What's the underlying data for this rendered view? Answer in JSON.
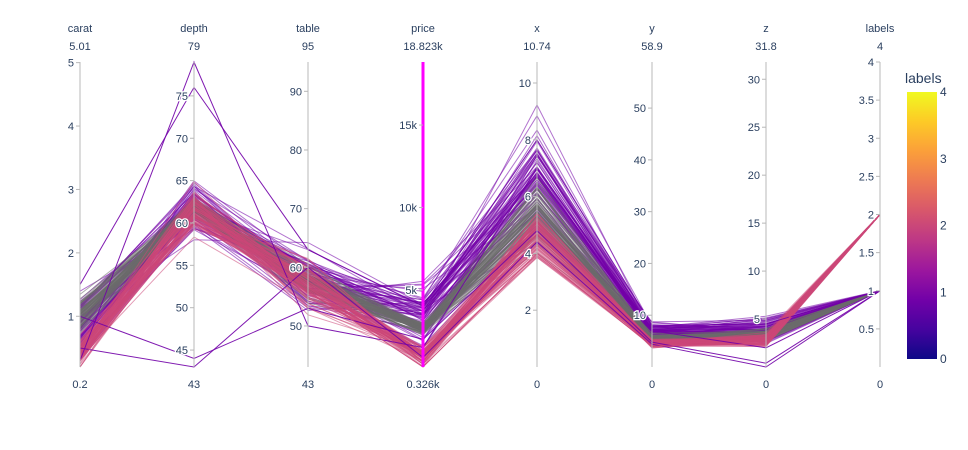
{
  "chart_data": {
    "type": "parallel-coordinates",
    "title": "",
    "color_dimension": "labels",
    "colorscale": [
      "#0d0887",
      "#46039f",
      "#7201a8",
      "#9c179e",
      "#bd3786",
      "#d8576b",
      "#ed7953",
      "#fb9f3a",
      "#fdca26",
      "#f0f921"
    ],
    "color_range": [
      0,
      4
    ],
    "dimensions": [
      {
        "name": "carat",
        "min": 0.2,
        "max": 5.01,
        "min_label": "0.2",
        "max_label": "5.01",
        "ticks": [
          {
            "v": 1,
            "label": "1"
          },
          {
            "v": 2,
            "label": "2"
          },
          {
            "v": 3,
            "label": "3"
          },
          {
            "v": 4,
            "label": "4"
          },
          {
            "v": 5,
            "label": "5"
          }
        ]
      },
      {
        "name": "depth",
        "min": 43,
        "max": 79,
        "min_label": "43",
        "max_label": "79",
        "ticks": [
          {
            "v": 45,
            "label": "45"
          },
          {
            "v": 50,
            "label": "50"
          },
          {
            "v": 55,
            "label": "55"
          },
          {
            "v": 60,
            "label": "60"
          },
          {
            "v": 65,
            "label": "65"
          },
          {
            "v": 70,
            "label": "70"
          },
          {
            "v": 75,
            "label": "75"
          }
        ]
      },
      {
        "name": "table",
        "min": 43,
        "max": 95,
        "min_label": "43",
        "max_label": "95",
        "ticks": [
          {
            "v": 50,
            "label": "50"
          },
          {
            "v": 60,
            "label": "60"
          },
          {
            "v": 70,
            "label": "70"
          },
          {
            "v": 80,
            "label": "80"
          },
          {
            "v": 90,
            "label": "90"
          }
        ]
      },
      {
        "name": "price",
        "min": 326,
        "max": 18823,
        "min_label": "0.326k",
        "max_label": "18.823k",
        "ticks": [
          {
            "v": 5000,
            "label": "5k"
          },
          {
            "v": 10000,
            "label": "10k"
          },
          {
            "v": 15000,
            "label": "15k"
          }
        ],
        "constraint": [
          326,
          18823
        ],
        "constraint_color": "#ff00ff"
      },
      {
        "name": "x",
        "min": 0,
        "max": 10.74,
        "min_label": "0",
        "max_label": "10.74",
        "ticks": [
          {
            "v": 2,
            "label": "2"
          },
          {
            "v": 4,
            "label": "4"
          },
          {
            "v": 6,
            "label": "6"
          },
          {
            "v": 8,
            "label": "8"
          },
          {
            "v": 10,
            "label": "10"
          }
        ]
      },
      {
        "name": "y",
        "min": 0,
        "max": 58.9,
        "min_label": "0",
        "max_label": "58.9",
        "ticks": [
          {
            "v": 10,
            "label": "10"
          },
          {
            "v": 20,
            "label": "20"
          },
          {
            "v": 30,
            "label": "30"
          },
          {
            "v": 40,
            "label": "40"
          },
          {
            "v": 50,
            "label": "50"
          }
        ]
      },
      {
        "name": "z",
        "min": 0,
        "max": 31.8,
        "min_label": "0",
        "max_label": "31.8",
        "ticks": [
          {
            "v": 5,
            "label": "5"
          },
          {
            "v": 10,
            "label": "10"
          },
          {
            "v": 15,
            "label": "15"
          },
          {
            "v": 20,
            "label": "20"
          },
          {
            "v": 25,
            "label": "25"
          },
          {
            "v": 30,
            "label": "30"
          }
        ]
      },
      {
        "name": "labels",
        "min": 0,
        "max": 4,
        "min_label": "0",
        "max_label": "4",
        "ticks": [
          {
            "v": 0.5,
            "label": "0.5"
          },
          {
            "v": 1,
            "label": "1"
          },
          {
            "v": 1.5,
            "label": "1.5"
          },
          {
            "v": 2,
            "label": "2"
          },
          {
            "v": 2.5,
            "label": "2.5"
          },
          {
            "v": 3,
            "label": "3"
          },
          {
            "v": 3.5,
            "label": "3.5"
          },
          {
            "v": 4,
            "label": "4"
          }
        ]
      }
    ],
    "clusters": [
      {
        "label": 1,
        "color": "#7201a8",
        "center": [
          0.8,
          61.8,
          57.5,
          3500,
          6.6,
          6.6,
          4.0,
          1
        ],
        "spread": [
          0.22,
          1.6,
          2.4,
          900,
          0.9,
          0.9,
          0.6,
          0
        ]
      },
      {
        "label": 0,
        "color": "#6b6b6b",
        "center": [
          1.0,
          62.0,
          57.5,
          2700,
          5.4,
          5.4,
          3.3,
          1
        ],
        "spread": [
          0.15,
          0.6,
          1.5,
          200,
          0.5,
          0.5,
          0.3,
          0
        ]
      },
      {
        "label": 2,
        "color": "#cc4778",
        "center": [
          0.45,
          61.5,
          57.0,
          950,
          4.6,
          4.6,
          2.8,
          2
        ],
        "spread": [
          0.12,
          1.3,
          2.2,
          300,
          0.4,
          0.4,
          0.3,
          0
        ]
      }
    ],
    "outliers": [
      {
        "label": 1,
        "values": [
          0.5,
          43,
          60,
          900,
          4.4,
          4.4,
          0,
          1
        ]
      },
      {
        "label": 1,
        "values": [
          1.0,
          44,
          53,
          2000,
          4.8,
          4.8,
          0.4,
          1
        ]
      },
      {
        "label": 1,
        "values": [
          0.3,
          79,
          50,
          1500,
          7.0,
          7.0,
          2.0,
          1
        ]
      },
      {
        "label": 1,
        "values": [
          1.5,
          76,
          63,
          4000,
          8.0,
          8.0,
          4.5,
          1
        ]
      },
      {
        "label": 2,
        "values": [
          0.3,
          60,
          56,
          326,
          4.0,
          4.0,
          2.4,
          2
        ]
      }
    ]
  }
}
